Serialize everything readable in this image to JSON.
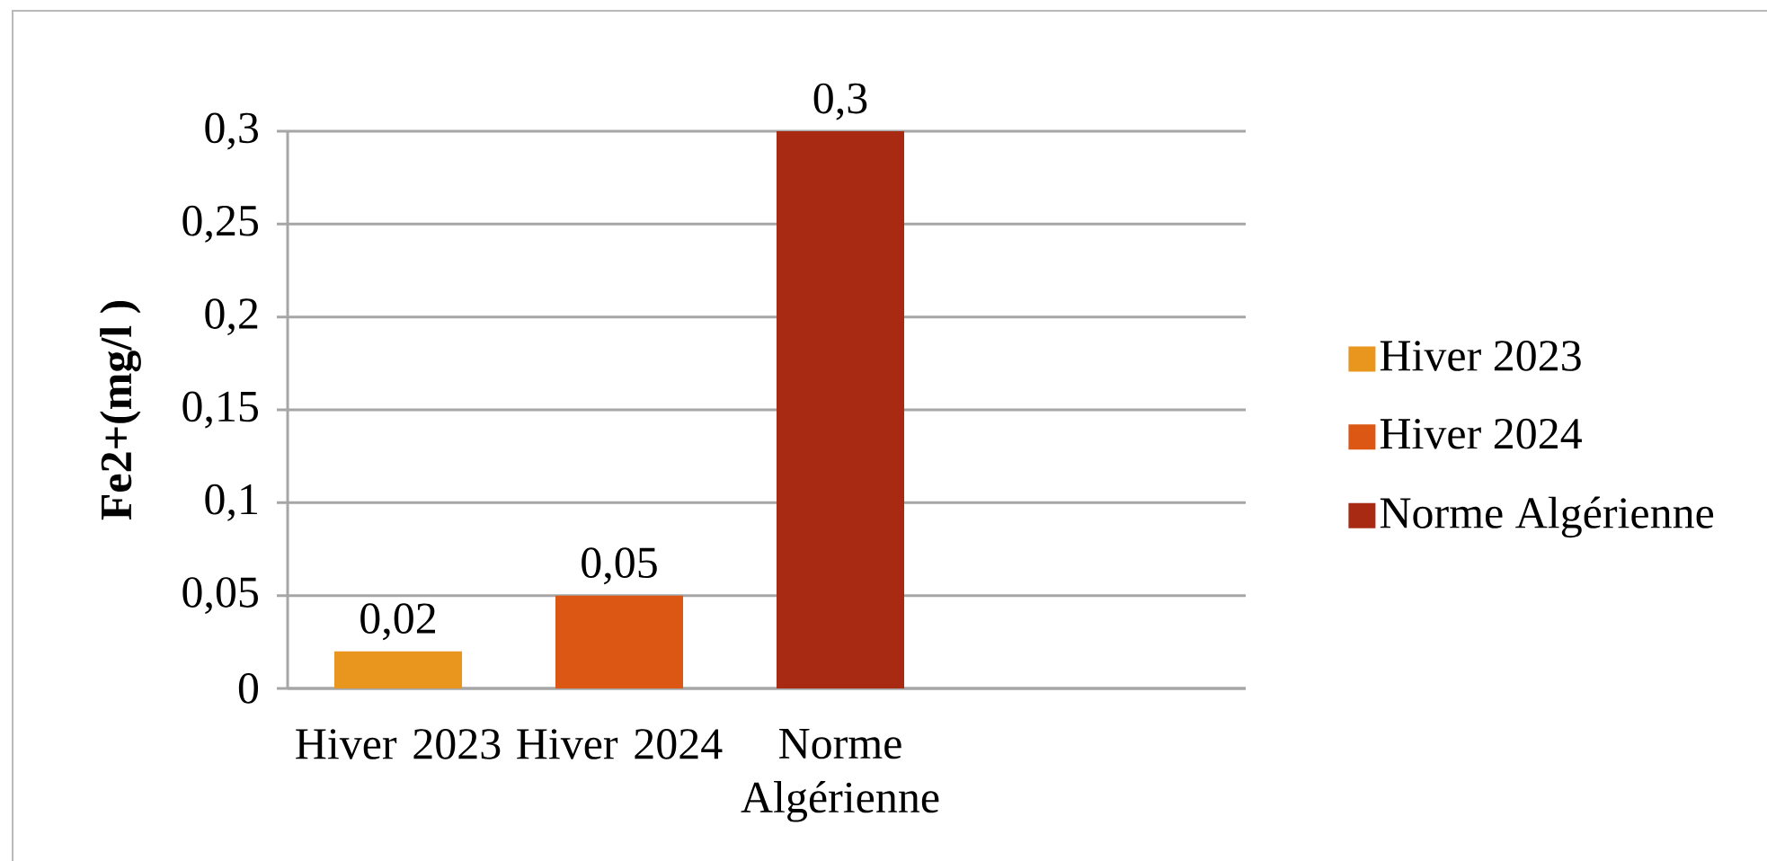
{
  "chart_data": {
    "type": "bar",
    "ylabel": "Fe2+(mg/l )",
    "categories": [
      "Hiver 2023",
      "Hiver 2024",
      "Norme Algérienne"
    ],
    "series": [
      {
        "name": "Hiver 2023",
        "color": "#e8961e",
        "values": [
          0.02,
          null,
          null
        ],
        "value_labels": [
          "0,02",
          null,
          null
        ]
      },
      {
        "name": "Hiver 2024",
        "color": "#dc5614",
        "values": [
          null,
          0.05,
          null
        ],
        "value_labels": [
          null,
          "0,05",
          null
        ]
      },
      {
        "name": "Norme Algérienne",
        "color": "#a82a12",
        "values": [
          null,
          null,
          0.3
        ],
        "value_labels": [
          null,
          null,
          "0,3"
        ]
      }
    ],
    "ylim": [
      0,
      0.3
    ],
    "yticks": [
      0,
      {
        "value": 0.05,
        "label": "0,05"
      },
      {
        "value": 0.1,
        "label": "0,1"
      },
      {
        "value": 0.15,
        "label": "0,15"
      },
      {
        "value": 0.2,
        "label": "0,2"
      },
      {
        "value": 0.25,
        "label": "0,25"
      },
      {
        "value": 0.3,
        "label": "0,3"
      }
    ],
    "grid": "y",
    "legend": "right"
  }
}
